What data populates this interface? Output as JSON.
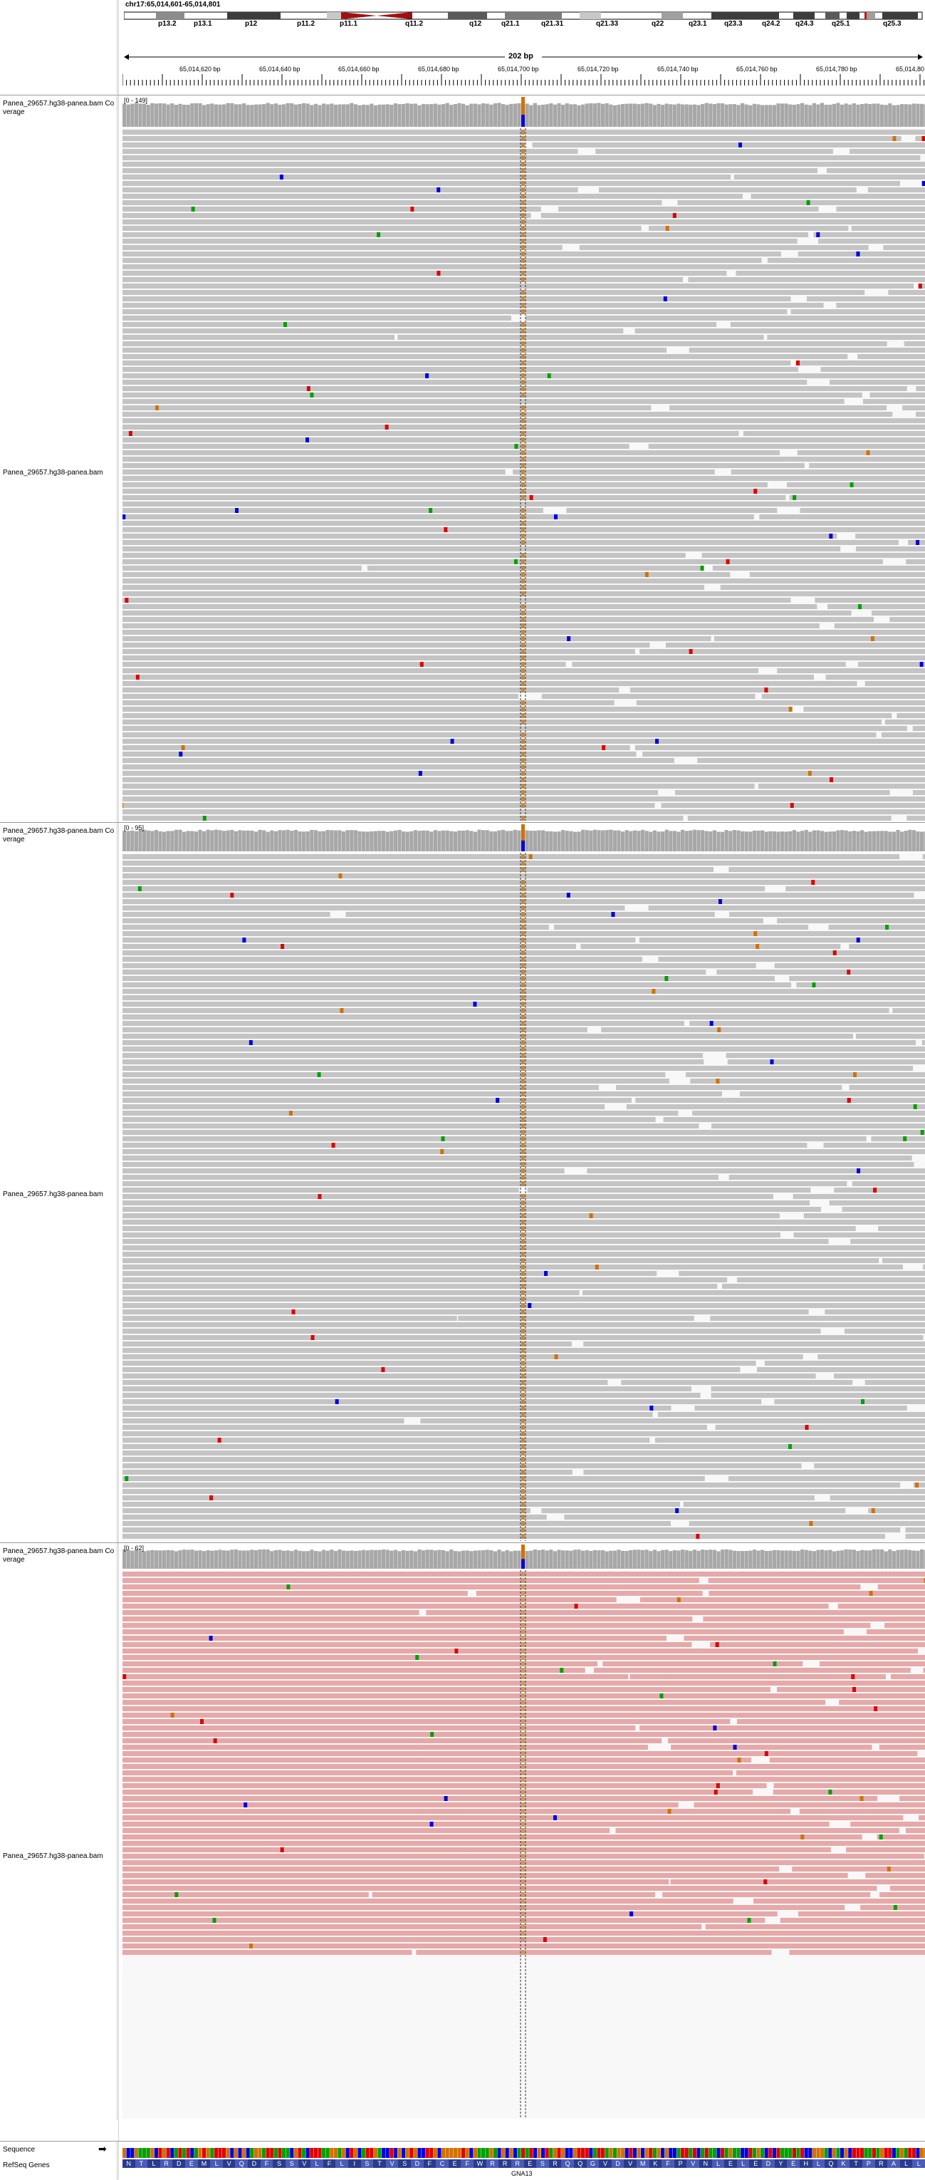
{
  "locus": "chr17:65,014,601-65,014,801",
  "span_label": "202 bp",
  "cytobands": [
    "p13.2",
    "p13.1",
    "p12",
    "p11.2",
    "p11.1",
    "q11.2",
    "q12",
    "q21.1",
    "q21.31",
    "q21.33",
    "q22",
    "q23.1",
    "q23.3",
    "q24.2",
    "q24.3",
    "q25.1",
    "q25.3"
  ],
  "ruler_ticks": [
    "65,014,620 bp",
    "65,014,640 bp",
    "65,014,660 bp",
    "65,014,680 bp",
    "65,014,700 bp",
    "65,014,720 bp",
    "65,014,740 bp",
    "65,014,760 bp",
    "65,014,780 bp",
    "65,014,80"
  ],
  "tracks": [
    {
      "coverage_name": "Panea_29657.hg38-panea.bam Coverage",
      "alignment_name": "Panea_29657.hg38-panea.bam",
      "range": "[0 - 149]"
    },
    {
      "coverage_name": "Panea_29657.hg38-panea.bam Coverage",
      "alignment_name": "Panea_29657.hg38-panea.bam",
      "range": "[0 - 95]"
    },
    {
      "coverage_name": "Panea_29657.hg38-panea.bam Coverage",
      "alignment_name": "Panea_29657.hg38-panea.bam",
      "range": "[0 - 62]"
    }
  ],
  "sequence_label": "Sequence",
  "sequence_arrow": "➡",
  "refseq_label": "RefSeq Genes",
  "amino_acids": "NTLRDEMLVQDFSSVLFLISTVSDFCEFWRRRESRQQGVDVMKFPVNLELEDYEHLQKTPRALL",
  "gene_name": "GNA13",
  "colors": {
    "read_gray": "#c4c4c4",
    "read_pink": "#e6a9a9",
    "coverage": "#a8a8a8",
    "aa_bg": "#2a3a8f",
    "aa_alt": "#4a5cb8"
  }
}
